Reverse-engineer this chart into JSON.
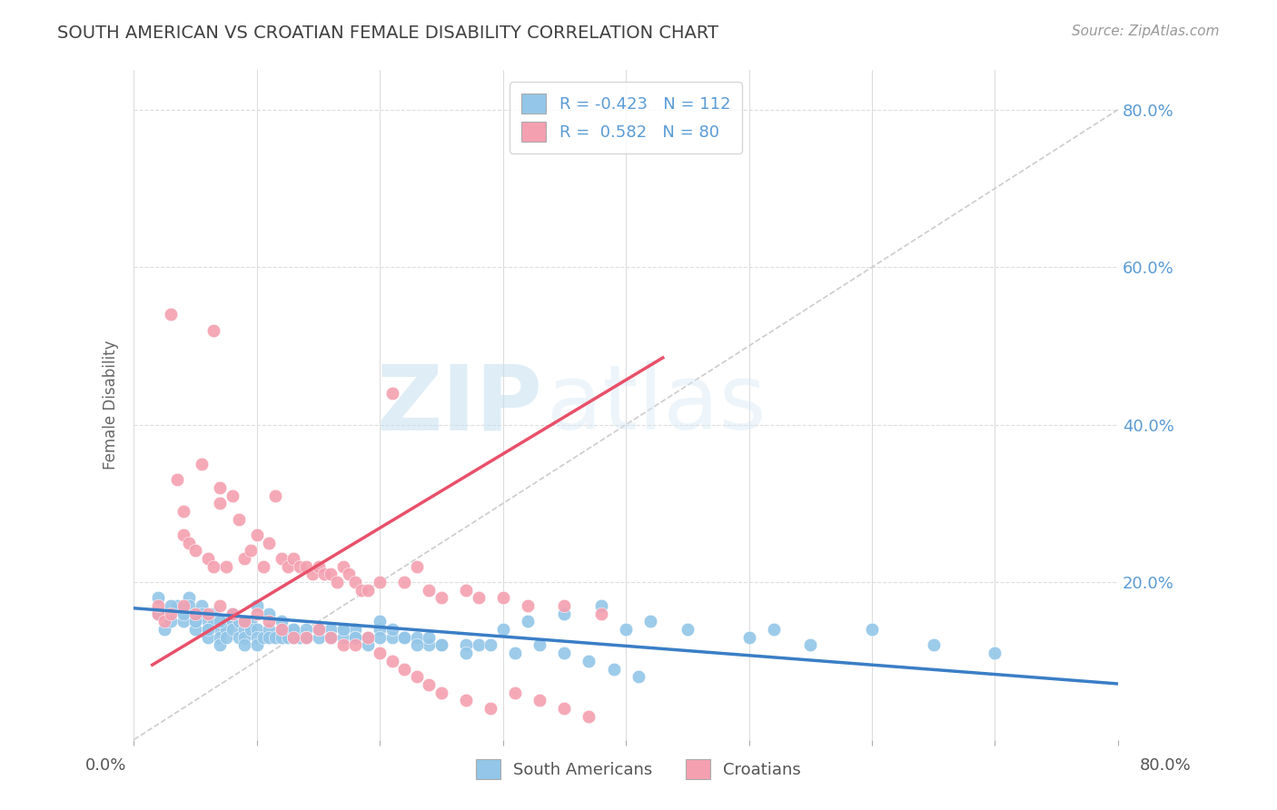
{
  "title": "SOUTH AMERICAN VS CROATIAN FEMALE DISABILITY CORRELATION CHART",
  "source": "Source: ZipAtlas.com",
  "ylabel": "Female Disability",
  "blue_R": -0.423,
  "blue_N": 112,
  "pink_R": 0.582,
  "pink_N": 80,
  "blue_color": "#93C6E8",
  "pink_color": "#F4A0B0",
  "blue_line_color": "#3A7EC6",
  "pink_line_color": "#E8506A",
  "watermark_zip": "ZIP",
  "watermark_atlas": "atlas",
  "background_color": "#FFFFFF",
  "xmin": 0.0,
  "xmax": 0.8,
  "ymin": 0.0,
  "ymax": 0.85,
  "yticks": [
    0.2,
    0.4,
    0.6,
    0.8
  ],
  "blue_line_x": [
    0.0,
    0.8
  ],
  "blue_line_y": [
    0.167,
    0.071
  ],
  "pink_line_x": [
    0.015,
    0.43
  ],
  "pink_line_y": [
    0.095,
    0.485
  ],
  "diag_line_x": [
    0.0,
    0.8
  ],
  "diag_line_y": [
    0.0,
    0.8
  ],
  "blue_points_x": [
    0.02,
    0.025,
    0.03,
    0.035,
    0.04,
    0.04,
    0.045,
    0.045,
    0.05,
    0.05,
    0.05,
    0.055,
    0.055,
    0.06,
    0.06,
    0.06,
    0.065,
    0.065,
    0.07,
    0.07,
    0.07,
    0.075,
    0.075,
    0.075,
    0.08,
    0.08,
    0.08,
    0.085,
    0.085,
    0.09,
    0.09,
    0.09,
    0.095,
    0.095,
    0.1,
    0.1,
    0.1,
    0.105,
    0.11,
    0.11,
    0.115,
    0.12,
    0.12,
    0.125,
    0.13,
    0.13,
    0.135,
    0.14,
    0.14,
    0.15,
    0.15,
    0.16,
    0.16,
    0.17,
    0.17,
    0.18,
    0.18,
    0.19,
    0.2,
    0.2,
    0.21,
    0.22,
    0.23,
    0.24,
    0.25,
    0.27,
    0.28,
    0.3,
    0.32,
    0.35,
    0.38,
    0.4,
    0.42,
    0.45,
    0.5,
    0.52,
    0.55,
    0.6,
    0.65,
    0.7,
    0.02,
    0.03,
    0.04,
    0.05,
    0.06,
    0.07,
    0.08,
    0.09,
    0.1,
    0.11,
    0.12,
    0.13,
    0.14,
    0.15,
    0.16,
    0.17,
    0.18,
    0.19,
    0.2,
    0.21,
    0.22,
    0.23,
    0.24,
    0.25,
    0.27,
    0.29,
    0.31,
    0.33,
    0.35,
    0.37,
    0.39,
    0.41
  ],
  "blue_points_y": [
    0.16,
    0.14,
    0.15,
    0.17,
    0.16,
    0.15,
    0.18,
    0.17,
    0.16,
    0.15,
    0.14,
    0.17,
    0.16,
    0.15,
    0.14,
    0.13,
    0.16,
    0.15,
    0.14,
    0.13,
    0.12,
    0.15,
    0.14,
    0.13,
    0.16,
    0.15,
    0.14,
    0.15,
    0.13,
    0.14,
    0.13,
    0.12,
    0.15,
    0.14,
    0.14,
    0.13,
    0.12,
    0.13,
    0.14,
    0.13,
    0.13,
    0.14,
    0.13,
    0.13,
    0.14,
    0.13,
    0.13,
    0.14,
    0.13,
    0.14,
    0.13,
    0.14,
    0.13,
    0.14,
    0.13,
    0.14,
    0.13,
    0.13,
    0.14,
    0.13,
    0.13,
    0.13,
    0.13,
    0.12,
    0.12,
    0.12,
    0.12,
    0.14,
    0.15,
    0.16,
    0.17,
    0.14,
    0.15,
    0.14,
    0.13,
    0.14,
    0.12,
    0.14,
    0.12,
    0.11,
    0.18,
    0.17,
    0.16,
    0.15,
    0.14,
    0.15,
    0.16,
    0.15,
    0.17,
    0.16,
    0.15,
    0.14,
    0.13,
    0.14,
    0.13,
    0.14,
    0.13,
    0.12,
    0.15,
    0.14,
    0.13,
    0.12,
    0.13,
    0.12,
    0.11,
    0.12,
    0.11,
    0.12,
    0.11,
    0.1,
    0.09,
    0.08
  ],
  "pink_points_x": [
    0.02,
    0.025,
    0.03,
    0.035,
    0.04,
    0.04,
    0.045,
    0.05,
    0.055,
    0.06,
    0.065,
    0.065,
    0.07,
    0.07,
    0.075,
    0.08,
    0.085,
    0.09,
    0.095,
    0.1,
    0.105,
    0.11,
    0.115,
    0.12,
    0.125,
    0.13,
    0.135,
    0.14,
    0.145,
    0.15,
    0.155,
    0.16,
    0.165,
    0.17,
    0.175,
    0.18,
    0.185,
    0.19,
    0.2,
    0.21,
    0.22,
    0.23,
    0.24,
    0.25,
    0.27,
    0.28,
    0.3,
    0.32,
    0.35,
    0.38,
    0.02,
    0.03,
    0.04,
    0.05,
    0.06,
    0.07,
    0.08,
    0.09,
    0.1,
    0.11,
    0.12,
    0.13,
    0.14,
    0.15,
    0.16,
    0.17,
    0.18,
    0.19,
    0.2,
    0.21,
    0.22,
    0.23,
    0.24,
    0.25,
    0.27,
    0.29,
    0.31,
    0.33,
    0.35,
    0.37
  ],
  "pink_points_y": [
    0.16,
    0.15,
    0.54,
    0.33,
    0.29,
    0.26,
    0.25,
    0.24,
    0.35,
    0.23,
    0.22,
    0.52,
    0.32,
    0.3,
    0.22,
    0.31,
    0.28,
    0.23,
    0.24,
    0.26,
    0.22,
    0.25,
    0.31,
    0.23,
    0.22,
    0.23,
    0.22,
    0.22,
    0.21,
    0.22,
    0.21,
    0.21,
    0.2,
    0.22,
    0.21,
    0.2,
    0.19,
    0.19,
    0.2,
    0.44,
    0.2,
    0.22,
    0.19,
    0.18,
    0.19,
    0.18,
    0.18,
    0.17,
    0.17,
    0.16,
    0.17,
    0.16,
    0.17,
    0.16,
    0.16,
    0.17,
    0.16,
    0.15,
    0.16,
    0.15,
    0.14,
    0.13,
    0.13,
    0.14,
    0.13,
    0.12,
    0.12,
    0.13,
    0.11,
    0.1,
    0.09,
    0.08,
    0.07,
    0.06,
    0.05,
    0.04,
    0.06,
    0.05,
    0.04,
    0.03
  ]
}
